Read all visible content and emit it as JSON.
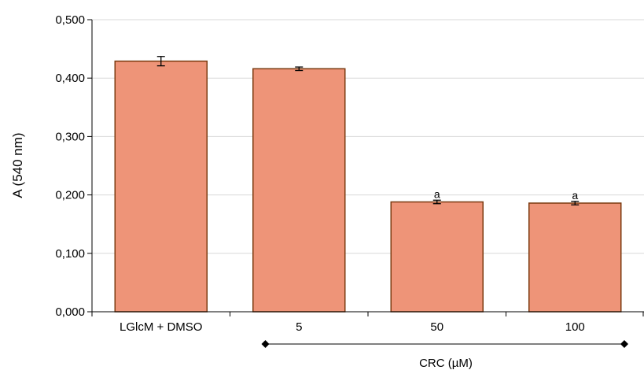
{
  "chart_data": {
    "type": "bar",
    "categories": [
      "LGlcM + DMSO",
      "5",
      "50",
      "100"
    ],
    "values": [
      0.429,
      0.416,
      0.188,
      0.186
    ],
    "errors": [
      0.008,
      0.003,
      0.003,
      0.003
    ],
    "annotations": [
      "",
      "",
      "a",
      "a"
    ],
    "title": "",
    "xlabel": "",
    "ylabel": "A (540 nm)",
    "ylim": [
      0,
      0.5
    ],
    "yticks": [
      0,
      0.1,
      0.2,
      0.3,
      0.4,
      0.5
    ],
    "ytick_labels": [
      "0,000",
      "0,100",
      "0,200",
      "0,300",
      "0,400",
      "0,500"
    ],
    "grid": "horizontal",
    "group_label": "CRC (µM)",
    "group_categories": [
      "5",
      "50",
      "100"
    ],
    "bar_color": "#ee9478",
    "bar_edge_color": "#7b3a10"
  }
}
